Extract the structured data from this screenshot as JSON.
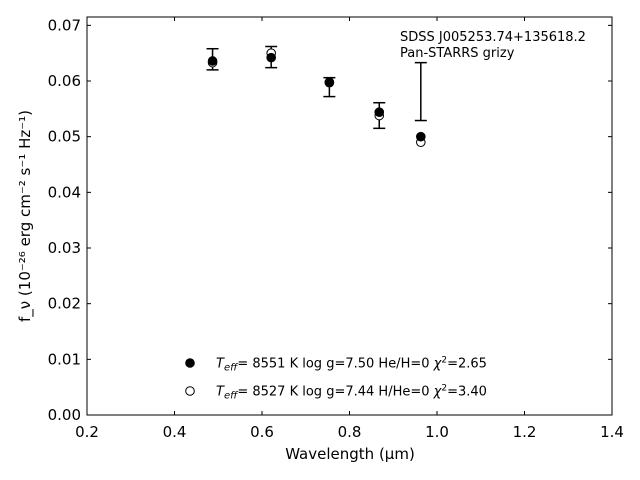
{
  "chart_data": {
    "type": "scatter",
    "xlabel": "Wavelength (μm)",
    "ylabel": "f_ν (10⁻²⁶ erg cm⁻² s⁻¹ Hz⁻¹)",
    "xlim": [
      0.2,
      1.4
    ],
    "ylim": [
      0.0,
      0.0715
    ],
    "x_ticks": [
      "0.2",
      "0.4",
      "0.6",
      "0.8",
      "1.0",
      "1.2",
      "1.4"
    ],
    "y_ticks": [
      "0.00",
      "0.01",
      "0.02",
      "0.03",
      "0.04",
      "0.05",
      "0.06",
      "0.07"
    ],
    "annotation": [
      "SDSS J005253.74+135618.2",
      "Pan-STARRS grizy"
    ],
    "observed": {
      "x": [
        0.487,
        0.621,
        0.754,
        0.868,
        0.963
      ],
      "y": [
        0.0639,
        0.0643,
        0.0589,
        0.0538,
        0.0581
      ],
      "err": [
        0.0019,
        0.0019,
        0.0017,
        0.0023,
        0.0052
      ]
    },
    "series": [
      {
        "name": "T_eff= 8551 K log g=7.50 He/H=0 χ²=2.65",
        "marker": "filled",
        "x": [
          0.487,
          0.621,
          0.754,
          0.868,
          0.963
        ],
        "y": [
          0.0636,
          0.0642,
          0.0598,
          0.0544,
          0.05
        ]
      },
      {
        "name": "T_eff= 8527 K log g=7.44 H/He=0 χ²=3.40",
        "marker": "open",
        "x": [
          0.487,
          0.621,
          0.754,
          0.868,
          0.963
        ],
        "y": [
          0.0633,
          0.065,
          0.0597,
          0.0538,
          0.049
        ]
      }
    ],
    "legend": [
      {
        "marker": "filled",
        "teff_value": "8551 K",
        "params": "log g=7.50  He/H=0",
        "chi2": "=2.65"
      },
      {
        "marker": "open",
        "teff_value": "8527 K",
        "params": "log g=7.44  H/He=0",
        "chi2": "=3.40"
      }
    ],
    "legend_placement": "bottom-center",
    "grid": false
  }
}
